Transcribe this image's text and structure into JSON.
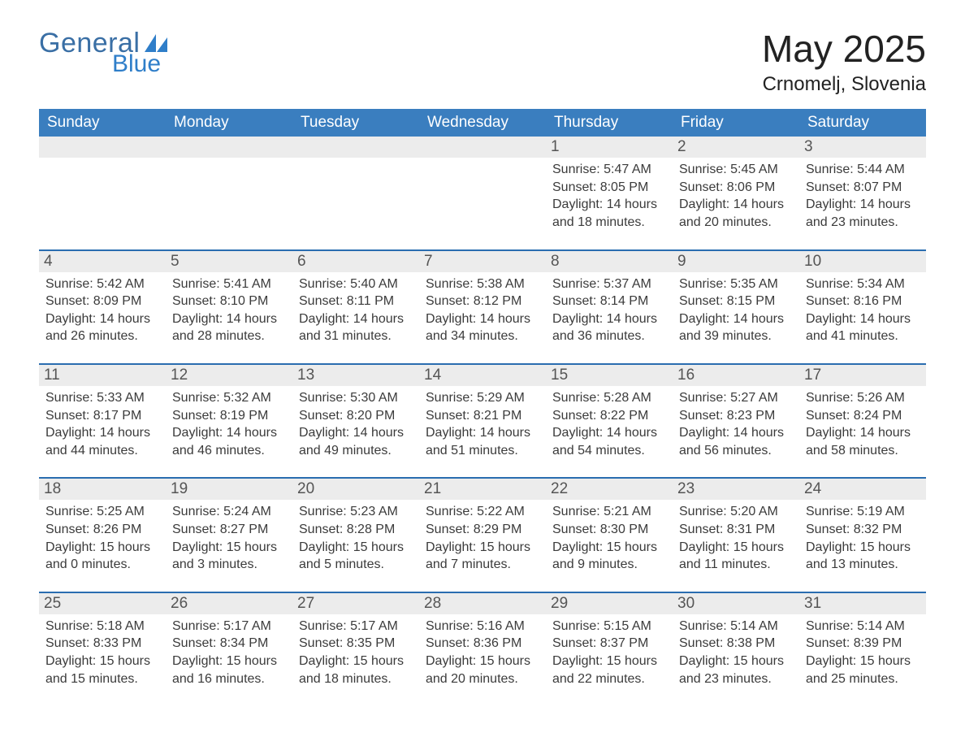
{
  "brand": {
    "word1": "General",
    "word2": "Blue",
    "sail_color": "#2f7ec9",
    "text_color1": "#3a6fa5",
    "text_color2": "#2f7ec9"
  },
  "header": {
    "month_title": "May 2025",
    "location": "Crnomelj, Slovenia"
  },
  "colors": {
    "header_blue": "#3a7ebf",
    "row_top_line": "#2a6db0",
    "daynum_bg": "#ececec",
    "page_bg": "#ffffff",
    "text_dark": "#2b2b2b"
  },
  "days_of_week": [
    "Sunday",
    "Monday",
    "Tuesday",
    "Wednesday",
    "Thursday",
    "Friday",
    "Saturday"
  ],
  "calendar": {
    "month": 5,
    "year": 2025,
    "first_weekday_index": 4,
    "weeks": [
      [
        null,
        null,
        null,
        null,
        {
          "day": 1,
          "sunrise": "5:47 AM",
          "sunset": "8:05 PM",
          "daylight": "14 hours and 18 minutes."
        },
        {
          "day": 2,
          "sunrise": "5:45 AM",
          "sunset": "8:06 PM",
          "daylight": "14 hours and 20 minutes."
        },
        {
          "day": 3,
          "sunrise": "5:44 AM",
          "sunset": "8:07 PM",
          "daylight": "14 hours and 23 minutes."
        }
      ],
      [
        {
          "day": 4,
          "sunrise": "5:42 AM",
          "sunset": "8:09 PM",
          "daylight": "14 hours and 26 minutes."
        },
        {
          "day": 5,
          "sunrise": "5:41 AM",
          "sunset": "8:10 PM",
          "daylight": "14 hours and 28 minutes."
        },
        {
          "day": 6,
          "sunrise": "5:40 AM",
          "sunset": "8:11 PM",
          "daylight": "14 hours and 31 minutes."
        },
        {
          "day": 7,
          "sunrise": "5:38 AM",
          "sunset": "8:12 PM",
          "daylight": "14 hours and 34 minutes."
        },
        {
          "day": 8,
          "sunrise": "5:37 AM",
          "sunset": "8:14 PM",
          "daylight": "14 hours and 36 minutes."
        },
        {
          "day": 9,
          "sunrise": "5:35 AM",
          "sunset": "8:15 PM",
          "daylight": "14 hours and 39 minutes."
        },
        {
          "day": 10,
          "sunrise": "5:34 AM",
          "sunset": "8:16 PM",
          "daylight": "14 hours and 41 minutes."
        }
      ],
      [
        {
          "day": 11,
          "sunrise": "5:33 AM",
          "sunset": "8:17 PM",
          "daylight": "14 hours and 44 minutes."
        },
        {
          "day": 12,
          "sunrise": "5:32 AM",
          "sunset": "8:19 PM",
          "daylight": "14 hours and 46 minutes."
        },
        {
          "day": 13,
          "sunrise": "5:30 AM",
          "sunset": "8:20 PM",
          "daylight": "14 hours and 49 minutes."
        },
        {
          "day": 14,
          "sunrise": "5:29 AM",
          "sunset": "8:21 PM",
          "daylight": "14 hours and 51 minutes."
        },
        {
          "day": 15,
          "sunrise": "5:28 AM",
          "sunset": "8:22 PM",
          "daylight": "14 hours and 54 minutes."
        },
        {
          "day": 16,
          "sunrise": "5:27 AM",
          "sunset": "8:23 PM",
          "daylight": "14 hours and 56 minutes."
        },
        {
          "day": 17,
          "sunrise": "5:26 AM",
          "sunset": "8:24 PM",
          "daylight": "14 hours and 58 minutes."
        }
      ],
      [
        {
          "day": 18,
          "sunrise": "5:25 AM",
          "sunset": "8:26 PM",
          "daylight": "15 hours and 0 minutes."
        },
        {
          "day": 19,
          "sunrise": "5:24 AM",
          "sunset": "8:27 PM",
          "daylight": "15 hours and 3 minutes."
        },
        {
          "day": 20,
          "sunrise": "5:23 AM",
          "sunset": "8:28 PM",
          "daylight": "15 hours and 5 minutes."
        },
        {
          "day": 21,
          "sunrise": "5:22 AM",
          "sunset": "8:29 PM",
          "daylight": "15 hours and 7 minutes."
        },
        {
          "day": 22,
          "sunrise": "5:21 AM",
          "sunset": "8:30 PM",
          "daylight": "15 hours and 9 minutes."
        },
        {
          "day": 23,
          "sunrise": "5:20 AM",
          "sunset": "8:31 PM",
          "daylight": "15 hours and 11 minutes."
        },
        {
          "day": 24,
          "sunrise": "5:19 AM",
          "sunset": "8:32 PM",
          "daylight": "15 hours and 13 minutes."
        }
      ],
      [
        {
          "day": 25,
          "sunrise": "5:18 AM",
          "sunset": "8:33 PM",
          "daylight": "15 hours and 15 minutes."
        },
        {
          "day": 26,
          "sunrise": "5:17 AM",
          "sunset": "8:34 PM",
          "daylight": "15 hours and 16 minutes."
        },
        {
          "day": 27,
          "sunrise": "5:17 AM",
          "sunset": "8:35 PM",
          "daylight": "15 hours and 18 minutes."
        },
        {
          "day": 28,
          "sunrise": "5:16 AM",
          "sunset": "8:36 PM",
          "daylight": "15 hours and 20 minutes."
        },
        {
          "day": 29,
          "sunrise": "5:15 AM",
          "sunset": "8:37 PM",
          "daylight": "15 hours and 22 minutes."
        },
        {
          "day": 30,
          "sunrise": "5:14 AM",
          "sunset": "8:38 PM",
          "daylight": "15 hours and 23 minutes."
        },
        {
          "day": 31,
          "sunrise": "5:14 AM",
          "sunset": "8:39 PM",
          "daylight": "15 hours and 25 minutes."
        }
      ]
    ]
  },
  "labels": {
    "sunrise": "Sunrise:",
    "sunset": "Sunset:",
    "daylight": "Daylight:"
  },
  "typography": {
    "month_title_fontsize": 46,
    "location_fontsize": 24,
    "dow_fontsize": 19,
    "daynum_fontsize": 19,
    "info_fontsize": 16,
    "font_family": "Segoe UI / Helvetica Neue / Arial"
  }
}
